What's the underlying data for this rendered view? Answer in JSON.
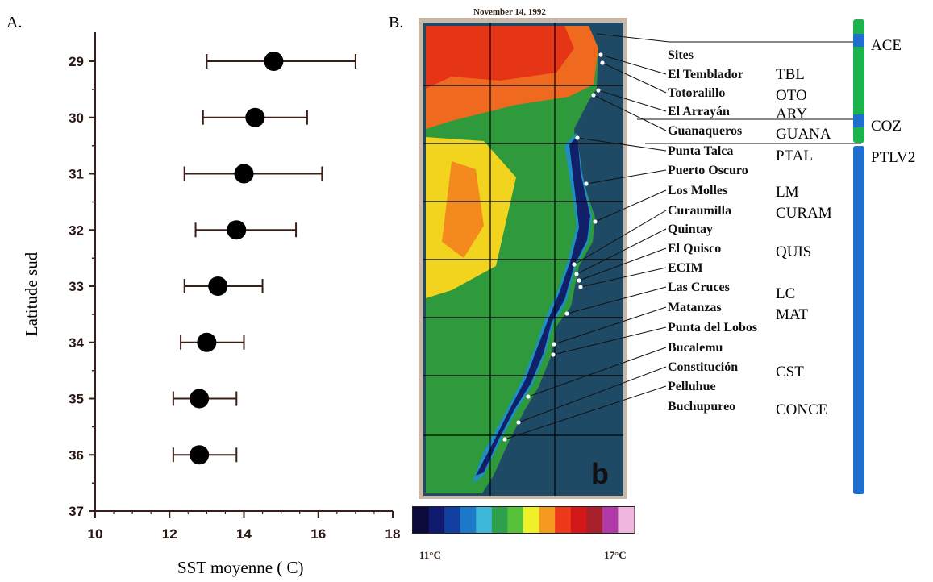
{
  "panel_a": {
    "label": "A.",
    "xlabel": "SST moyenne ( C)",
    "ylabel": "Latitude sud",
    "chart_data": {
      "type": "scatter",
      "title": "",
      "xlabel": "SST moyenne ( C)",
      "ylabel": "Latitude sud",
      "xlim": [
        10,
        18
      ],
      "ylim": [
        37,
        28.5
      ],
      "x_ticks": [
        "10",
        "12",
        "14",
        "16",
        "18"
      ],
      "y_ticks": [
        "29",
        "30",
        "31",
        "32",
        "33",
        "34",
        "35",
        "36",
        "37"
      ],
      "grid": false,
      "points": [
        {
          "lat": 29,
          "mean": 14.8,
          "low": 13.0,
          "high": 17.0
        },
        {
          "lat": 30,
          "mean": 14.3,
          "low": 12.9,
          "high": 15.7
        },
        {
          "lat": 31,
          "mean": 14.0,
          "low": 12.4,
          "high": 16.1
        },
        {
          "lat": 32,
          "mean": 13.8,
          "low": 12.7,
          "high": 15.4
        },
        {
          "lat": 33,
          "mean": 13.3,
          "low": 12.4,
          "high": 14.5
        },
        {
          "lat": 34,
          "mean": 13.0,
          "low": 12.3,
          "high": 14.0
        },
        {
          "lat": 35,
          "mean": 12.8,
          "low": 12.1,
          "high": 13.8
        },
        {
          "lat": 36,
          "mean": 12.8,
          "low": 12.1,
          "high": 13.8
        }
      ]
    }
  },
  "panel_b": {
    "label": "B.",
    "date": "November 14, 1992",
    "map_letter": "b",
    "sites_header": "Sites",
    "scale_min": "11°C",
    "scale_max": "17°C",
    "scale_colors": [
      "#0b0a3a",
      "#101a6e",
      "#1240a0",
      "#1c78c8",
      "#3db8d8",
      "#2e9f4a",
      "#55c23a",
      "#f0f028",
      "#f49a1e",
      "#ee3a1a",
      "#d41818",
      "#a8202a",
      "#b23aa8",
      "#f0b6e0"
    ],
    "sites": [
      {
        "name": "El Temblador",
        "code": "TBL"
      },
      {
        "name": "Totoralillo",
        "code": "OTO"
      },
      {
        "name": "El Arrayán",
        "code": "ARY"
      },
      {
        "name": "Guanaqueros",
        "code": "GUANA"
      },
      {
        "name": "Punta Talca",
        "code": "PTAL"
      },
      {
        "name": "Puerto Oscuro",
        "code": ""
      },
      {
        "name": "Los Molles",
        "code": "LM"
      },
      {
        "name": "Curaumilla",
        "code": "CURAM"
      },
      {
        "name": "Quintay",
        "code": ""
      },
      {
        "name": "El Quisco",
        "code": "QUIS"
      },
      {
        "name": "ECIM",
        "code": ""
      },
      {
        "name": "Las Cruces",
        "code": "LC"
      },
      {
        "name": "Matanzas",
        "code": "MAT"
      },
      {
        "name": "Punta del Lobos",
        "code": ""
      },
      {
        "name": "Bucalemu",
        "code": ""
      },
      {
        "name": "Constitución",
        "code": "CST"
      },
      {
        "name": "Pelluhue",
        "code": ""
      },
      {
        "name": "Buchupureo",
        "code": "CONCE"
      }
    ],
    "regions": [
      {
        "label": "ACE",
        "color": "#1f6fd0"
      },
      {
        "label": "COZ",
        "color": "#1f6fd0"
      },
      {
        "label": "PTLV2",
        "color": "#1f6fd0"
      }
    ],
    "region_bar_colors": {
      "green": "#1db34c",
      "blue": "#1f6fd0"
    }
  }
}
